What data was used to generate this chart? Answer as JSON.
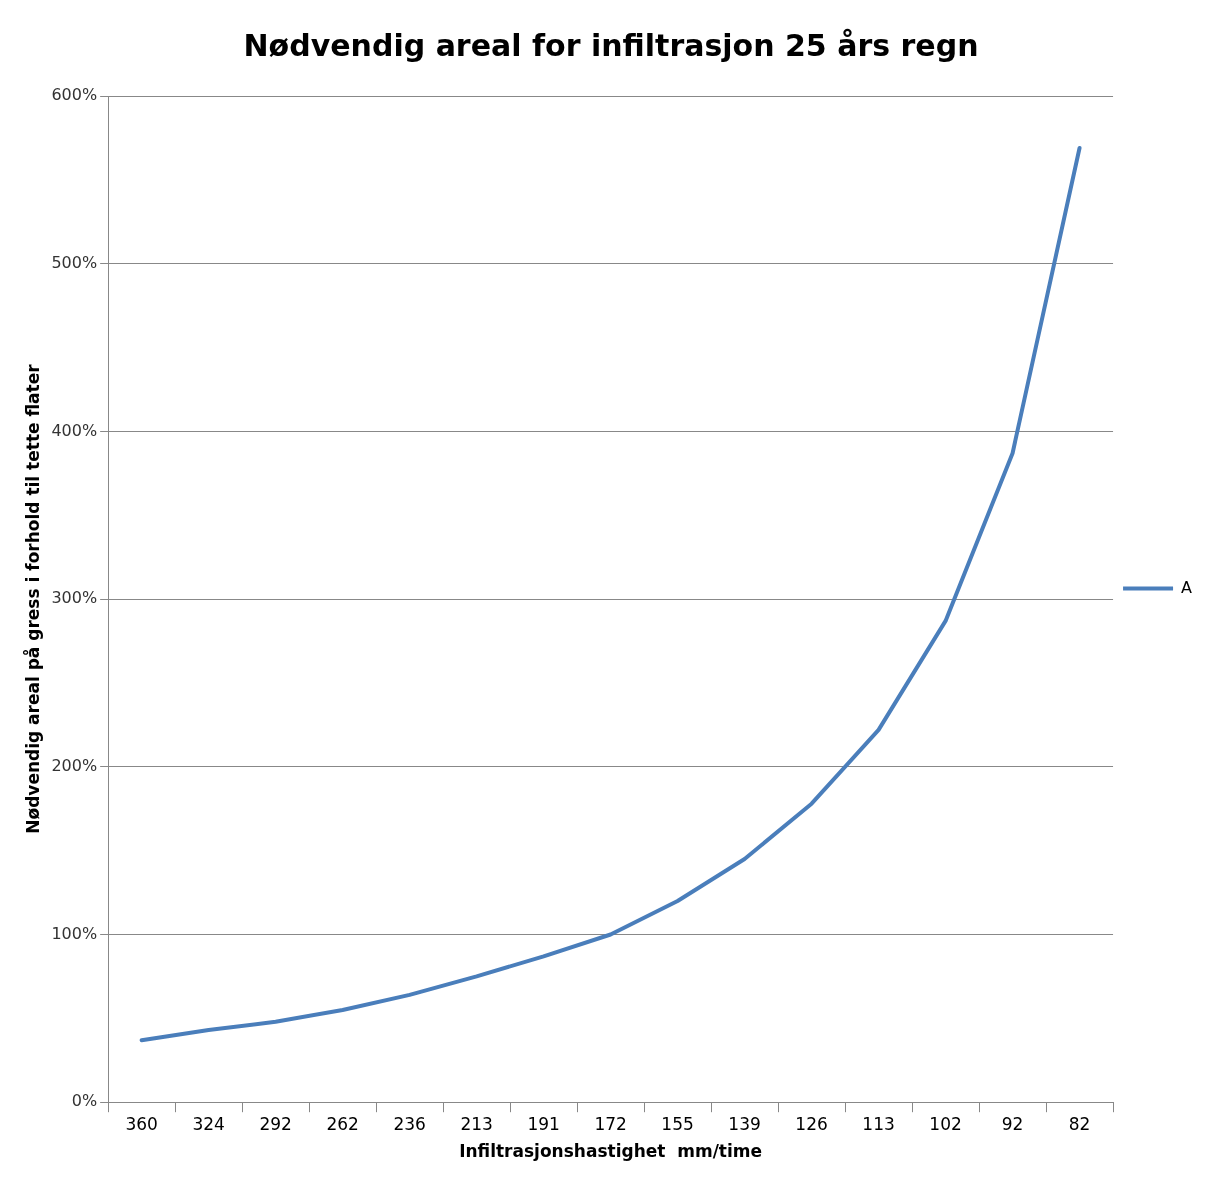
{
  "chart_data": {
    "type": "line",
    "title": "Nødvendig areal for infiltrasjon 25 års regn",
    "xlabel": "Infiltrasjonshastighet  mm/time",
    "ylabel": "Nødvendig areal på gress i forhold til tette flater",
    "categories": [
      "360",
      "324",
      "292",
      "262",
      "236",
      "213",
      "191",
      "172",
      "155",
      "139",
      "126",
      "113",
      "102",
      "92",
      "82"
    ],
    "series": [
      {
        "name": "A",
        "color": "#4a7ebb",
        "values": [
          37,
          43,
          48,
          55,
          64,
          75,
          87,
          100,
          120,
          145,
          178,
          222,
          287,
          387,
          569
        ]
      }
    ],
    "ylim": [
      0,
      600
    ],
    "yticks": [
      {
        "value": 0,
        "label": "0%"
      },
      {
        "value": 100,
        "label": "100%"
      },
      {
        "value": 200,
        "label": "200%"
      },
      {
        "value": 300,
        "label": "300%"
      },
      {
        "value": 400,
        "label": "400%"
      },
      {
        "value": 500,
        "label": "500%"
      },
      {
        "value": 600,
        "label": "600%"
      }
    ],
    "grid": "y",
    "legend": "right",
    "marker": "none",
    "line_style": "solid"
  }
}
